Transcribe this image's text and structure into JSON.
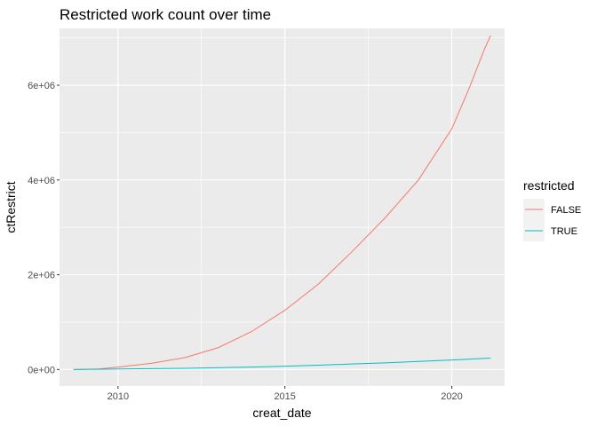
{
  "chart_data": {
    "type": "line",
    "title": "Restricted work count over time",
    "xlabel": "creat_date",
    "ylabel": "ctRestrict",
    "x_axis": "date",
    "xlim": [
      "2008-04-01",
      "2021-08-01"
    ],
    "ylim": [
      -350000,
      7200000
    ],
    "x_ticks": [
      {
        "label": "2010",
        "date": "2010-01-01"
      },
      {
        "label": "2015",
        "date": "2015-01-01"
      },
      {
        "label": "2020",
        "date": "2020-01-01"
      }
    ],
    "y_ticks": [
      {
        "label": "0e+00",
        "value": 0
      },
      {
        "label": "2e+06",
        "value": 2000000
      },
      {
        "label": "4e+06",
        "value": 4000000
      },
      {
        "label": "6e+06",
        "value": 6000000
      }
    ],
    "grid": true,
    "legend": {
      "title": "restricted",
      "position": "right"
    },
    "series": [
      {
        "name": "FALSE",
        "color": "#F8766D",
        "points": [
          [
            "2008-09-01",
            0
          ],
          [
            "2009-06-01",
            10000
          ],
          [
            "2010-01-01",
            50000
          ],
          [
            "2011-01-01",
            130000
          ],
          [
            "2012-01-01",
            250000
          ],
          [
            "2013-01-01",
            460000
          ],
          [
            "2014-01-01",
            800000
          ],
          [
            "2015-01-01",
            1250000
          ],
          [
            "2016-01-01",
            1800000
          ],
          [
            "2017-01-01",
            2480000
          ],
          [
            "2018-01-01",
            3200000
          ],
          [
            "2019-01-01",
            4000000
          ],
          [
            "2020-01-01",
            5080000
          ],
          [
            "2020-07-01",
            5900000
          ],
          [
            "2021-01-01",
            6800000
          ],
          [
            "2021-03-01",
            7050000
          ]
        ]
      },
      {
        "name": "TRUE",
        "color": "#00BFC4",
        "points": [
          [
            "2008-09-01",
            0
          ],
          [
            "2010-01-01",
            10000
          ],
          [
            "2012-01-01",
            25000
          ],
          [
            "2014-01-01",
            50000
          ],
          [
            "2015-01-01",
            70000
          ],
          [
            "2016-01-01",
            90000
          ],
          [
            "2017-01-01",
            115000
          ],
          [
            "2018-01-01",
            140000
          ],
          [
            "2019-01-01",
            170000
          ],
          [
            "2020-01-01",
            200000
          ],
          [
            "2021-03-01",
            240000
          ]
        ]
      }
    ]
  }
}
